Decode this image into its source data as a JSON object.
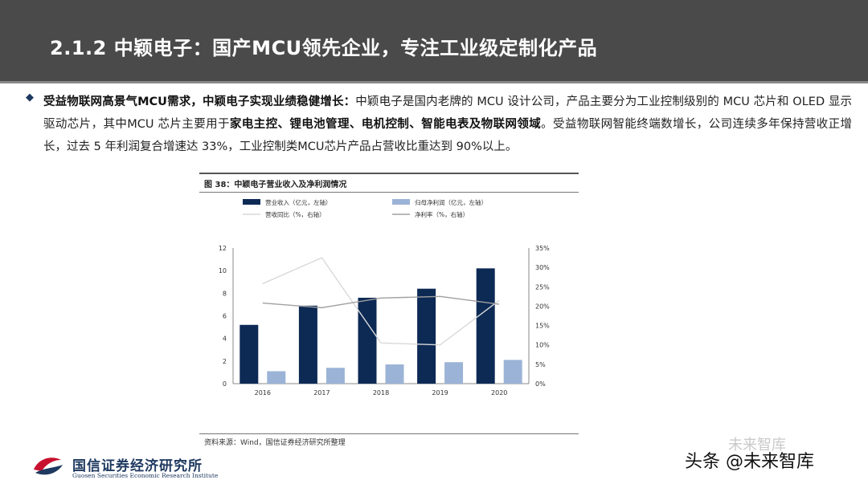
{
  "header": {
    "title": "2.1.2 中颖电子：国产MCU领先企业，专注工业级定制化产品"
  },
  "bullet": {
    "lead": "受益物联网高景气MCU需求，中颖电子实现业绩稳健增长：",
    "text1": "中颖电子是国内老牌的 MCU 设计公司，产品主要分为工业控制级别的 MCU 芯片和 OLED 显示驱动芯片，其中MCU 芯片主要用于",
    "bold2": "家电主控、锂电池管理、电机控制、智能电表及物联网领域",
    "text3": "。受益物联网智能终端数增长，公司连续多年保持营收正增长，过去 5 年利润复合增速达 33%，工业控制类MCU芯片产品占营收比重达到 90%以上。"
  },
  "figure": {
    "title": "图 38：中颖电子营业收入及净利润情况",
    "source": "资料来源：Wind，国信证券经济研究所整理"
  },
  "chart_data": {
    "type": "bar",
    "categories": [
      "2016",
      "2017",
      "2018",
      "2019",
      "2020"
    ],
    "series": [
      {
        "name": "营业收入（亿元，左轴）",
        "type": "bar",
        "axis": "left",
        "color": "#0d2a55",
        "values": [
          5.2,
          6.9,
          7.6,
          8.4,
          10.2
        ]
      },
      {
        "name": "归母净利润（亿元，左轴）",
        "type": "bar",
        "axis": "left",
        "color": "#9bb3d6",
        "values": [
          1.1,
          1.4,
          1.7,
          1.9,
          2.1
        ]
      },
      {
        "name": "营收同比（%，右轴）",
        "type": "line",
        "axis": "right",
        "color": "#d9d9d9",
        "values": [
          25.8,
          32.5,
          10.5,
          10.0,
          21.5
        ]
      },
      {
        "name": "净利率（%，右轴）",
        "type": "line",
        "axis": "right",
        "color": "#a0a0a0",
        "values": [
          20.8,
          19.6,
          22.1,
          22.5,
          20.5
        ]
      }
    ],
    "left_axis": {
      "min": 0,
      "max": 12,
      "ticks": [
        "0",
        "2",
        "4",
        "6",
        "8",
        "10",
        "12"
      ]
    },
    "right_axis": {
      "min": 0,
      "max": 35,
      "ticks": [
        "0%",
        "5%",
        "10%",
        "15%",
        "20%",
        "25%",
        "30%",
        "35%"
      ]
    },
    "legend_position": "top",
    "grid": false
  },
  "footer": {
    "logo_cn": "国信证券经济研究所",
    "logo_en": "Guosen Securities Economic Research Institute",
    "watermark": "头条 @未来智库",
    "watermark_faint": "未来智库"
  }
}
